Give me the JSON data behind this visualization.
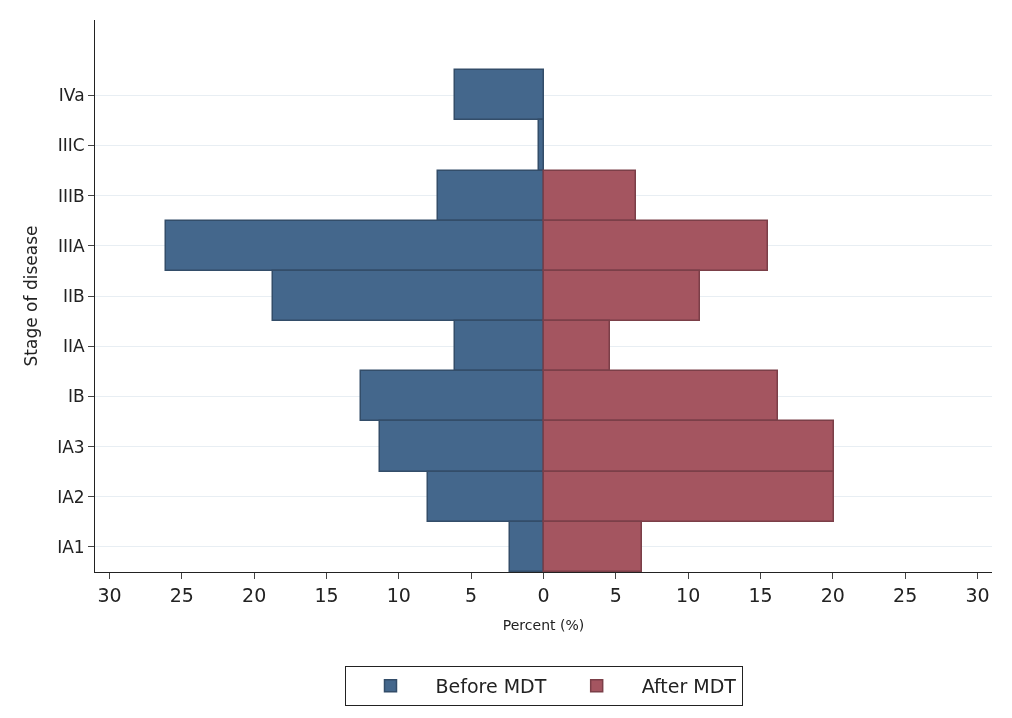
{
  "chart_data": {
    "type": "bar",
    "orientation": "horizontal",
    "stacked": true,
    "categories": [
      "IVa",
      "IIIC",
      "IIIB",
      "IIIA",
      "IIB",
      "IIA",
      "IB",
      "IA3",
      "IA2",
      "IA1"
    ],
    "series": [
      {
        "name": "Before MDT",
        "color": "#44678c",
        "values": [
          -6.1,
          -0.3,
          -7.3,
          -26.1,
          -18.7,
          -6.1,
          -12.6,
          -11.3,
          -8.0,
          -2.3
        ]
      },
      {
        "name": "After MDT",
        "color": "#a45560",
        "values": [
          null,
          null,
          6.4,
          15.5,
          10.8,
          4.6,
          16.2,
          20.1,
          20.1,
          6.8
        ]
      }
    ],
    "xlim": [
      -31,
      31
    ],
    "xticks": [
      {
        "value": -30,
        "label": "30"
      },
      {
        "value": -25,
        "label": "25"
      },
      {
        "value": -20,
        "label": "20"
      },
      {
        "value": -15,
        "label": "15"
      },
      {
        "value": -10,
        "label": "10"
      },
      {
        "value": -5,
        "label": "5"
      },
      0,
      5,
      10,
      15,
      20,
      25,
      30
    ],
    "xlabel": "Percent (%)",
    "ylabel": "Stage of disease",
    "grid": "y",
    "legend": "bottom"
  }
}
